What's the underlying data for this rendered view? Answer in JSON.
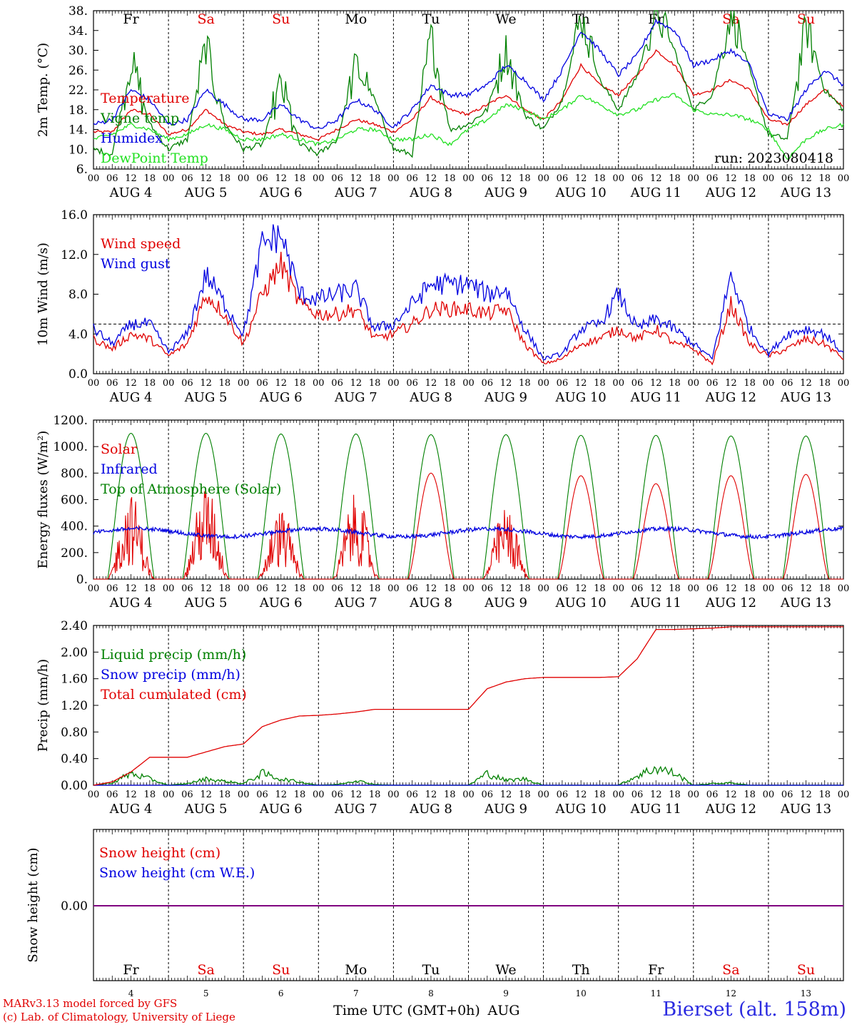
{
  "colors": {
    "red": "#e00000",
    "green": "#008000",
    "blue": "#0000e0",
    "lightgreen": "#22e022",
    "purple": "#800080",
    "axis": "#000000"
  },
  "days_of_week": [
    {
      "label": "Fr",
      "color": "black"
    },
    {
      "label": "Sa",
      "color": "red"
    },
    {
      "label": "Su",
      "color": "red"
    },
    {
      "label": "Mo",
      "color": "black"
    },
    {
      "label": "Tu",
      "color": "black"
    },
    {
      "label": "We",
      "color": "black"
    },
    {
      "label": "Th",
      "color": "black"
    },
    {
      "label": "Fr",
      "color": "black"
    },
    {
      "label": "Sa",
      "color": "red"
    },
    {
      "label": "Su",
      "color": "red"
    }
  ],
  "day_labels": [
    "AUG  4",
    "AUG  5",
    "AUG  6",
    "AUG  7",
    "AUG  8",
    "AUG  9",
    "AUG 10",
    "AUG 11",
    "AUG 12",
    "AUG 13"
  ],
  "day_numbers": [
    "4",
    "5",
    "6",
    "7",
    "8",
    "9",
    "10",
    "11",
    "12",
    "13"
  ],
  "hour_ticks": [
    "00",
    "06",
    "12",
    "18"
  ],
  "final_hour_tick": "00",
  "x_axis_title": "Time UTC (GMT+0h)",
  "x_axis_month": "AUG",
  "credits": [
    "MARv3.13 model forced by GFS",
    "(c) Lab. of Climatology, University of Liege"
  ],
  "station": "Bierset (alt. 158m)",
  "chart_data": [
    {
      "type": "line",
      "ylabel": "2m Temp. (°C)",
      "ylim": [
        6,
        38
      ],
      "yticks": [
        "6.",
        "10.",
        "14.",
        "18.",
        "22.",
        "26.",
        "30.",
        "34.",
        "38."
      ],
      "run_label": "run: 2023080418",
      "x_hours": [
        0,
        6,
        12,
        18,
        24,
        30,
        36,
        42,
        48,
        54,
        60,
        66,
        72,
        78,
        84,
        90,
        96,
        102,
        108,
        114,
        120,
        126,
        132,
        138,
        144,
        150,
        156,
        162,
        168,
        174,
        180,
        186,
        192,
        198,
        204,
        210,
        216,
        222,
        228,
        234,
        240
      ],
      "series": [
        {
          "name": "Temperature",
          "color": "red",
          "values": [
            13.5,
            13.5,
            18,
            17,
            13,
            14,
            18,
            15,
            13.5,
            13,
            14,
            13,
            12,
            14,
            16,
            15,
            13.5,
            16,
            20.5,
            18,
            17,
            19,
            21,
            18,
            16,
            20,
            27,
            23,
            21,
            25,
            30,
            27,
            21,
            22,
            24,
            22,
            16,
            15,
            19,
            22,
            18.5
          ]
        },
        {
          "name": "Vigne temp",
          "color": "green",
          "values": [
            10,
            9,
            28,
            15,
            10,
            12,
            31,
            15,
            10,
            11,
            23,
            11,
            9,
            12,
            27,
            20,
            10,
            9,
            33,
            14,
            15,
            18,
            30,
            17,
            14,
            20,
            37,
            24,
            18,
            25,
            38,
            30,
            18,
            21,
            38,
            26,
            13,
            12,
            35,
            22,
            18
          ]
        },
        {
          "name": "Humidex",
          "color": "blue",
          "values": [
            15,
            16,
            22,
            20,
            15,
            16,
            22,
            19,
            16,
            16,
            19,
            16,
            14,
            16,
            20,
            18,
            14.5,
            18,
            23,
            21,
            21,
            23,
            27,
            24,
            20,
            26,
            34,
            30,
            25,
            29,
            36,
            34,
            27,
            28,
            30,
            27,
            17,
            16,
            22,
            26,
            23
          ]
        },
        {
          "name": "DewPoint Temp",
          "color": "lightgreen",
          "values": [
            12,
            13,
            15,
            14,
            12,
            13,
            15,
            14,
            12,
            12,
            13,
            12,
            11,
            12,
            14,
            14,
            12,
            12,
            13,
            11,
            14,
            16,
            19,
            18,
            16,
            18,
            21,
            19,
            17,
            18,
            20,
            21,
            18,
            17,
            17,
            16,
            14,
            8,
            12,
            14,
            15
          ]
        }
      ]
    },
    {
      "type": "line",
      "ylabel": "10m Wind (m/s)",
      "ylim": [
        0,
        16
      ],
      "yticks": [
        "0.0",
        "4.0",
        "8.0",
        "12.0",
        "16.0"
      ],
      "reference_line": 5,
      "x_hours": [
        0,
        6,
        12,
        18,
        24,
        30,
        36,
        42,
        48,
        54,
        60,
        66,
        72,
        78,
        84,
        90,
        96,
        102,
        108,
        114,
        120,
        126,
        132,
        138,
        144,
        150,
        156,
        162,
        168,
        174,
        180,
        186,
        192,
        198,
        204,
        210,
        216,
        222,
        228,
        234,
        240
      ],
      "series": [
        {
          "name": "Wind speed",
          "color": "red",
          "values": [
            3.5,
            2.5,
            4,
            3.5,
            1.8,
            3,
            8,
            6,
            3,
            8,
            11,
            7,
            6,
            6,
            6.5,
            3.5,
            4,
            5,
            6.5,
            6.5,
            6.5,
            6,
            6.5,
            3,
            1,
            1.5,
            3,
            3.5,
            4.5,
            3.5,
            4.5,
            3,
            2.5,
            1,
            7,
            3,
            1.8,
            2.5,
            3.5,
            3,
            1.5
          ]
        },
        {
          "name": "Wind gust",
          "color": "blue",
          "values": [
            4.5,
            3,
            5,
            5,
            2.2,
            4,
            10,
            7,
            4,
            13,
            14,
            8,
            7.5,
            8,
            8.5,
            4.5,
            5,
            7,
            9,
            9,
            9,
            8,
            8.5,
            4.5,
            1.5,
            2,
            4.5,
            5,
            8,
            4.5,
            5.5,
            4.5,
            3,
            1.5,
            10,
            4.5,
            2,
            4,
            4.5,
            4,
            2
          ]
        }
      ]
    },
    {
      "type": "line",
      "ylabel": "Energy fluxes (W/m²)",
      "ylim": [
        0,
        1200
      ],
      "yticks": [
        "0.",
        "200.",
        "400.",
        "600.",
        "800.",
        "1000.",
        "1200."
      ],
      "peaks": {
        "toa": [
          1100,
          1100,
          1095,
          1095,
          1090,
          1090,
          1085,
          1085,
          1080,
          1080
        ],
        "solar": [
          650,
          720,
          530,
          650,
          800,
          550,
          780,
          720,
          780,
          790
        ]
      },
      "series": [
        {
          "name": "Solar",
          "color": "red",
          "values": []
        },
        {
          "name": "Infrared",
          "color": "blue",
          "values": []
        },
        {
          "name": "Top of Atmosphere (Solar)",
          "color": "green",
          "values": []
        }
      ]
    },
    {
      "type": "line",
      "ylabel": "Precip (mm/h)",
      "ylim": [
        0,
        2.4
      ],
      "yticks": [
        "0.00",
        "0.40",
        "0.80",
        "1.20",
        "1.60",
        "2.00",
        "2.40"
      ],
      "x_hours": [
        0,
        6,
        12,
        18,
        24,
        30,
        36,
        42,
        48,
        54,
        60,
        66,
        72,
        78,
        84,
        90,
        96,
        102,
        108,
        114,
        120,
        126,
        132,
        138,
        144,
        150,
        156,
        162,
        168,
        174,
        180,
        186,
        192,
        198,
        204,
        210,
        216,
        222,
        228,
        234,
        240
      ],
      "series": [
        {
          "name": "Liquid precip (mm/h)",
          "color": "green",
          "values": [
            0,
            0.03,
            0.15,
            0.08,
            0,
            0.02,
            0.08,
            0.05,
            0.02,
            0.15,
            0.08,
            0.04,
            0,
            0.01,
            0.06,
            0.01,
            0,
            0,
            0,
            0,
            0,
            0.15,
            0.06,
            0.08,
            0,
            0,
            0,
            0,
            0,
            0.12,
            0.22,
            0.15,
            0,
            0.02,
            0.03,
            0,
            0,
            0,
            0,
            0,
            0
          ]
        },
        {
          "name": "Snow precip (mm/h)",
          "color": "blue",
          "values": [
            0,
            0,
            0,
            0,
            0,
            0,
            0,
            0,
            0,
            0,
            0,
            0,
            0,
            0,
            0,
            0,
            0,
            0,
            0,
            0,
            0,
            0,
            0,
            0,
            0,
            0,
            0,
            0,
            0,
            0,
            0,
            0,
            0,
            0,
            0,
            0,
            0,
            0,
            0,
            0,
            0
          ]
        },
        {
          "name": "Total cumulated (cm)",
          "color": "red",
          "values": [
            0,
            0.05,
            0.2,
            0.42,
            0.42,
            0.42,
            0.5,
            0.58,
            0.62,
            0.88,
            0.98,
            1.04,
            1.05,
            1.07,
            1.1,
            1.14,
            1.14,
            1.14,
            1.14,
            1.14,
            1.14,
            1.45,
            1.55,
            1.6,
            1.62,
            1.62,
            1.62,
            1.62,
            1.63,
            1.9,
            2.34,
            2.34,
            2.35,
            2.36,
            2.38,
            2.38,
            2.38,
            2.38,
            2.38,
            2.38,
            2.38
          ]
        }
      ]
    },
    {
      "type": "line",
      "ylabel": "Snow height (cm)",
      "ytick": "0.00",
      "series": [
        {
          "name": "Snow height (cm)",
          "color": "red",
          "values": [
            0,
            0
          ]
        },
        {
          "name": "Snow height (cm W.E.)",
          "color": "blue",
          "values": [
            0,
            0
          ]
        }
      ]
    }
  ]
}
